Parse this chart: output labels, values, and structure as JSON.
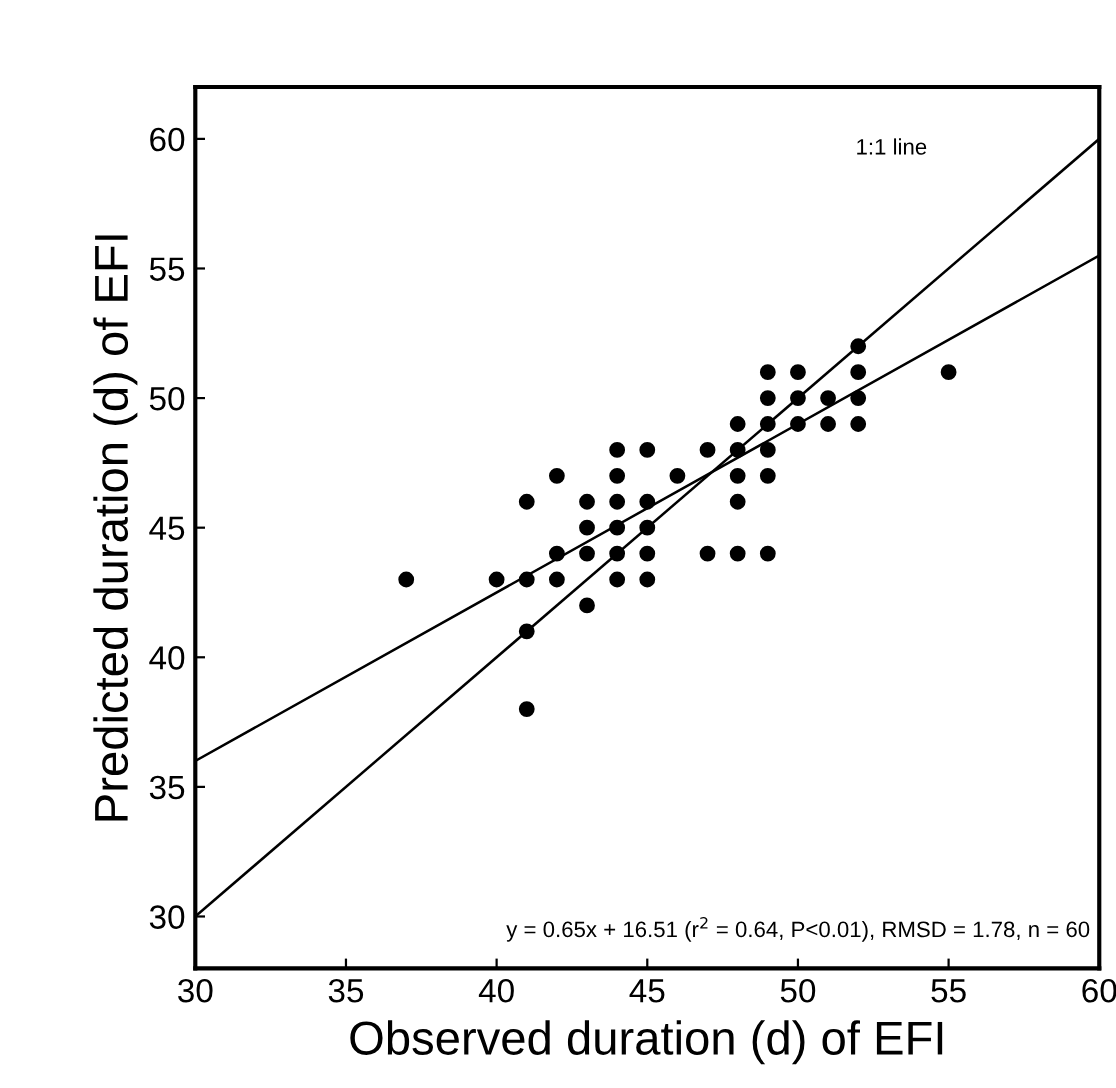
{
  "chart_data": {
    "type": "scatter",
    "xlabel": "Observed duration (d) of EFI",
    "ylabel": "Predicted duration (d) of EFI",
    "xlim": [
      30,
      60
    ],
    "ylim": [
      28,
      62
    ],
    "xticks": [
      30,
      35,
      40,
      45,
      50,
      55,
      60
    ],
    "yticks": [
      30,
      35,
      40,
      45,
      50,
      55,
      60
    ],
    "grid": false,
    "legend": false,
    "series": [
      {
        "marker": "circle",
        "color": "#000000",
        "x": [
          37,
          40,
          41,
          41,
          41,
          41,
          42,
          42,
          42,
          43,
          43,
          43,
          43,
          44,
          44,
          44,
          44,
          44,
          44,
          45,
          45,
          45,
          45,
          45,
          46,
          47,
          47,
          48,
          48,
          48,
          48,
          48,
          49,
          49,
          49,
          49,
          49,
          49,
          50,
          50,
          50,
          51,
          51,
          52,
          52,
          52,
          52,
          55
        ],
        "values": [
          43,
          43,
          43,
          46,
          41,
          38,
          47,
          44,
          43,
          46,
          45,
          44,
          42,
          48,
          47,
          46,
          45,
          44,
          43,
          48,
          46,
          45,
          44,
          43,
          47,
          48,
          44,
          49,
          48,
          47,
          46,
          44,
          51,
          50,
          49,
          48,
          47,
          44,
          51,
          49,
          50,
          49,
          50,
          52,
          51,
          50,
          49,
          51
        ]
      },
      {
        "type": "line",
        "color": "#000000",
        "line_style": "solid",
        "x": [
          30,
          60
        ],
        "values": [
          30,
          60
        ]
      },
      {
        "type": "line",
        "color": "#000000",
        "line_style": "solid",
        "x": [
          30,
          60
        ],
        "values": [
          36.0,
          55.5
        ]
      }
    ],
    "annotations": [
      "1:1 line",
      "y = 0.65x + 16.51 (r$^{2}$ = 0.64, P<0.01), RMSD = 1.78, n = 60"
    ]
  }
}
